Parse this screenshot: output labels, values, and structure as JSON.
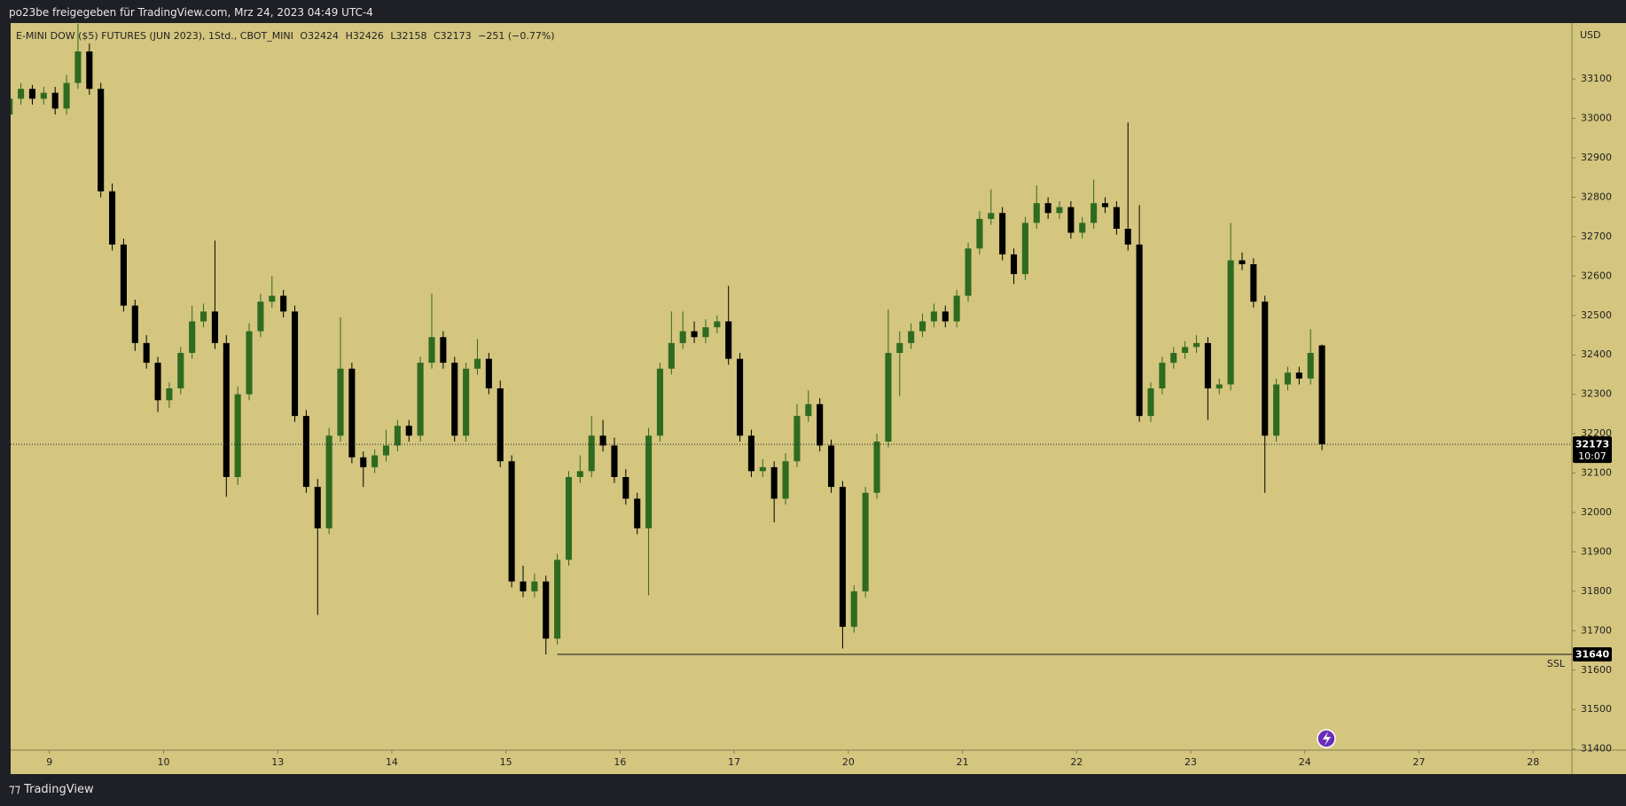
{
  "header": {
    "title": "po23be freigegeben für TradingView.com, Mrz 24, 2023 04:49 UTC-4"
  },
  "legend": {
    "symbol": "E-MINI DOW ($5) FUTURES (JUN 2023), 1Std., CBOT_MINI",
    "open": "O32424",
    "high": "H32426",
    "low": "L32158",
    "close": "C32173",
    "change": "−251 (−0.77%)"
  },
  "footer": {
    "brand": "TradingView"
  },
  "chart_data": {
    "type": "candlestick",
    "currency": "USD",
    "up_color": "#2e6b1f",
    "down_color": "#000000",
    "background": "#d4c57f",
    "grid": false,
    "xlim": [
      -0.34,
      13.34
    ],
    "ylim": [
      31397,
      33242
    ],
    "xticks": [
      {
        "value": 0,
        "label": "9"
      },
      {
        "value": 1,
        "label": "10"
      },
      {
        "value": 2,
        "label": "13"
      },
      {
        "value": 3,
        "label": "14"
      },
      {
        "value": 4,
        "label": "15"
      },
      {
        "value": 5,
        "label": "16"
      },
      {
        "value": 6,
        "label": "17"
      },
      {
        "value": 7,
        "label": "20"
      },
      {
        "value": 8,
        "label": "21"
      },
      {
        "value": 9,
        "label": "22"
      },
      {
        "value": 10,
        "label": "23"
      },
      {
        "value": 11,
        "label": "24"
      },
      {
        "value": 12,
        "label": "27"
      },
      {
        "value": 13,
        "label": "28"
      }
    ],
    "yticks": [
      31400,
      31500,
      31600,
      31700,
      31800,
      31900,
      32000,
      32100,
      32200,
      32300,
      32400,
      32500,
      32600,
      32700,
      32800,
      32900,
      33000,
      33100
    ],
    "last_price": 32173,
    "countdown": "10:07",
    "level": {
      "value": 31640,
      "label": "SSL",
      "start_x": 4.45
    },
    "x": [
      -0.35,
      -0.25,
      -0.15,
      -0.05,
      0.05,
      0.15,
      0.25,
      0.35,
      0.45,
      0.55,
      0.65,
      0.75,
      0.85,
      0.95,
      1.05,
      1.15,
      1.25,
      1.35,
      1.45,
      1.55,
      1.65,
      1.75,
      1.85,
      1.95,
      2.05,
      2.15,
      2.25,
      2.35,
      2.45,
      2.55,
      2.65,
      2.75,
      2.85,
      2.95,
      3.05,
      3.15,
      3.25,
      3.35,
      3.45,
      3.55,
      3.65,
      3.75,
      3.85,
      3.95,
      4.05,
      4.15,
      4.25,
      4.35,
      4.45,
      4.55,
      4.65,
      4.75,
      4.85,
      4.95,
      5.05,
      5.15,
      5.25,
      5.35,
      5.45,
      5.55,
      5.65,
      5.75,
      5.85,
      5.95,
      6.05,
      6.15,
      6.25,
      6.35,
      6.45,
      6.55,
      6.65,
      6.75,
      6.85,
      6.95,
      7.05,
      7.15,
      7.25,
      7.35,
      7.45,
      7.55,
      7.65,
      7.75,
      7.85,
      7.95,
      8.05,
      8.15,
      8.25,
      8.35,
      8.45,
      8.55,
      8.65,
      8.75,
      8.85,
      8.95,
      9.05,
      9.15,
      9.25,
      9.35,
      9.45,
      9.55,
      9.65,
      9.75,
      9.85,
      9.95,
      10.05,
      10.15,
      10.25,
      10.35,
      10.45,
      10.55,
      10.65,
      10.75,
      10.85,
      10.95,
      11.05,
      11.15
    ],
    "open": [
      33010,
      33050,
      33075,
      33050,
      33065,
      33025,
      33090,
      33170,
      33075,
      32815,
      32680,
      32525,
      32430,
      32380,
      32285,
      32315,
      32405,
      32485,
      32510,
      32430,
      32090,
      32300,
      32460,
      32535,
      32550,
      32510,
      32245,
      32065,
      31960,
      32195,
      32365,
      32140,
      32115,
      32145,
      32170,
      32220,
      32195,
      32380,
      32445,
      32380,
      32195,
      32365,
      32390,
      32315,
      32130,
      31825,
      31800,
      31825,
      31680,
      31880,
      32090,
      32105,
      32195,
      32170,
      32090,
      32035,
      31960,
      32195,
      32365,
      32430,
      32460,
      32445,
      32470,
      32485,
      32390,
      32195,
      32105,
      32115,
      32035,
      32130,
      32245,
      32275,
      32170,
      32065,
      31710,
      31800,
      32050,
      32180,
      32405,
      32430,
      32460,
      32485,
      32510,
      32485,
      32550,
      32670,
      32745,
      32760,
      32655,
      32605,
      32735,
      32785,
      32760,
      32775,
      32710,
      32735,
      32785,
      32775,
      32720,
      32680,
      32245,
      32315,
      32380,
      32405,
      32420,
      32430,
      32315,
      32325,
      32640,
      32630,
      32535,
      32195,
      32325,
      32355,
      32340,
      32424
    ],
    "high": [
      33100,
      33090,
      33085,
      33080,
      33080,
      33110,
      33240,
      33190,
      33090,
      32835,
      32695,
      32540,
      32450,
      32395,
      32330,
      32420,
      32525,
      32530,
      32690,
      32450,
      32320,
      32480,
      32555,
      32600,
      32565,
      32525,
      32260,
      32085,
      32215,
      32495,
      32380,
      32155,
      32160,
      32210,
      32235,
      32235,
      32395,
      32555,
      32460,
      32395,
      32380,
      32440,
      32405,
      32335,
      32145,
      31865,
      31845,
      31840,
      31895,
      32105,
      32145,
      32245,
      32235,
      32190,
      32110,
      32050,
      32215,
      32380,
      32510,
      32510,
      32485,
      32490,
      32500,
      32575,
      32405,
      32210,
      32135,
      32130,
      32150,
      32275,
      32310,
      32290,
      32185,
      32080,
      31815,
      32065,
      32200,
      32515,
      32460,
      32480,
      32505,
      32530,
      32525,
      32565,
      32685,
      32765,
      32820,
      32775,
      32670,
      32750,
      32830,
      32800,
      32790,
      32790,
      32750,
      32845,
      32800,
      32790,
      32990,
      32780,
      32330,
      32395,
      32420,
      32435,
      32450,
      32445,
      32340,
      32735,
      32660,
      32645,
      32550,
      32340,
      32370,
      32370,
      32465,
      32426
    ],
    "low": [
      32950,
      33035,
      33035,
      33035,
      33010,
      33010,
      33075,
      33060,
      32800,
      32665,
      32510,
      32410,
      32365,
      32255,
      32265,
      32300,
      32390,
      32470,
      32415,
      32040,
      32070,
      32285,
      32445,
      32520,
      32495,
      32230,
      32050,
      31740,
      31945,
      32180,
      32125,
      32065,
      32100,
      32130,
      32155,
      32180,
      32180,
      32365,
      32365,
      32180,
      32180,
      32350,
      32300,
      32115,
      31810,
      31785,
      31785,
      31640,
      31665,
      31865,
      32075,
      32090,
      32155,
      32075,
      32020,
      31945,
      31790,
      32180,
      32350,
      32415,
      32430,
      32430,
      32455,
      32375,
      32180,
      32090,
      32090,
      31975,
      32020,
      32115,
      32230,
      32155,
      32050,
      31655,
      31695,
      31785,
      32035,
      32165,
      32295,
      32415,
      32445,
      32470,
      32470,
      32470,
      32535,
      32655,
      32730,
      32640,
      32580,
      32590,
      32720,
      32745,
      32745,
      32695,
      32695,
      32720,
      32760,
      32705,
      32665,
      32230,
      32230,
      32300,
      32365,
      32390,
      32405,
      32235,
      32300,
      32310,
      32615,
      32520,
      32050,
      32180,
      32310,
      32325,
      32325,
      32158
    ],
    "close": [
      33050,
      33075,
      33050,
      33065,
      33025,
      33090,
      33170,
      33075,
      32815,
      32680,
      32525,
      32430,
      32380,
      32285,
      32315,
      32405,
      32485,
      32510,
      32430,
      32090,
      32300,
      32460,
      32535,
      32550,
      32510,
      32245,
      32065,
      31960,
      32195,
      32365,
      32140,
      32115,
      32145,
      32170,
      32220,
      32195,
      32380,
      32445,
      32380,
      32195,
      32365,
      32390,
      32315,
      32130,
      31825,
      31800,
      31825,
      31680,
      31880,
      32090,
      32105,
      32195,
      32170,
      32090,
      32035,
      31960,
      32195,
      32365,
      32430,
      32460,
      32445,
      32470,
      32485,
      32390,
      32195,
      32105,
      32115,
      32035,
      32130,
      32245,
      32275,
      32170,
      32065,
      31710,
      31800,
      32050,
      32180,
      32405,
      32430,
      32460,
      32485,
      32510,
      32485,
      32550,
      32670,
      32745,
      32760,
      32655,
      32605,
      32735,
      32785,
      32760,
      32775,
      32710,
      32735,
      32785,
      32775,
      32720,
      32680,
      32245,
      32315,
      32380,
      32405,
      32420,
      32430,
      32315,
      32325,
      32640,
      32630,
      32535,
      32195,
      32325,
      32355,
      32340,
      32405,
      32173
    ]
  }
}
